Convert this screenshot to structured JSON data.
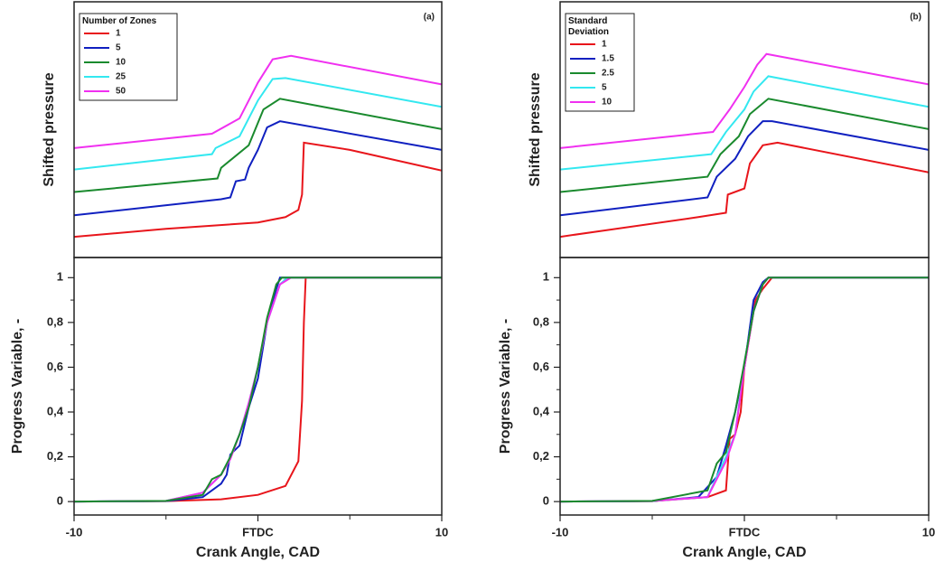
{
  "chart_data": [
    {
      "type": "line",
      "annotation": "(a)",
      "ylabel": "Shifted pressure",
      "xlim": [
        -10,
        10
      ],
      "ylim": [
        0,
        100
      ],
      "legend_title": "Number of Zones",
      "legend": "upper left",
      "series": [
        {
          "name": "1",
          "color": "#e8151b",
          "x": [
            -10,
            -5,
            0,
            1.5,
            2.2,
            2.4,
            2.5,
            5,
            10
          ],
          "values": [
            8.1,
            11.2,
            13.7,
            15.8,
            18.6,
            24.6,
            44.9,
            42.1,
            34.0
          ]
        },
        {
          "name": "5",
          "color": "#1020c0",
          "x": [
            -10,
            -2,
            -1.5,
            -1.2,
            -0.7,
            -0.5,
            0,
            0.5,
            1.2,
            10
          ],
          "values": [
            16.5,
            22.8,
            23.5,
            29.8,
            30.5,
            35.1,
            42.1,
            50.9,
            53.3,
            42.1
          ]
        },
        {
          "name": "10",
          "color": "#1a8a2e",
          "x": [
            -10,
            -2.2,
            -2,
            -0.5,
            0.3,
            1.2,
            10
          ],
          "values": [
            25.6,
            30.9,
            35.1,
            43.9,
            57.9,
            62.1,
            50.2
          ]
        },
        {
          "name": "25",
          "color": "#33e8f0",
          "x": [
            -10,
            -2.5,
            -2.3,
            -1,
            0,
            0.8,
            1.5,
            10
          ],
          "values": [
            34.4,
            40.4,
            42.8,
            47.4,
            61.4,
            69.8,
            70.2,
            58.9
          ]
        },
        {
          "name": "50",
          "color": "#f030f0",
          "x": [
            -10,
            -2.5,
            -1,
            0,
            0.8,
            1.8,
            10
          ],
          "values": [
            42.8,
            48.4,
            54.4,
            68.4,
            77.5,
            78.9,
            67.7
          ]
        }
      ]
    },
    {
      "type": "line",
      "xlabel": "Crank Angle, CAD",
      "ylabel": "Progress Variable, -",
      "xlim": [
        -10,
        10
      ],
      "ylim": [
        -0.06,
        1.09
      ],
      "xticks": [
        -10,
        {
          "value": 0,
          "label": "FTDC"
        },
        10
      ],
      "xminor": [
        -5,
        5
      ],
      "yticks": [
        0,
        {
          "value": 0.2,
          "label": "0,2"
        },
        {
          "value": 0.4,
          "label": "0,4"
        },
        {
          "value": 0.6,
          "label": "0,6"
        },
        {
          "value": 0.8,
          "label": "0,8"
        },
        1
      ],
      "yminor": [
        0.1,
        0.3,
        0.5,
        0.7,
        0.9
      ],
      "series": [
        {
          "color": "#e8151b",
          "x": [
            -10,
            -5,
            -2,
            0,
            1.5,
            2.2,
            2.4,
            2.5,
            2.6,
            10
          ],
          "values": [
            0,
            0.002,
            0.01,
            0.03,
            0.07,
            0.18,
            0.45,
            0.8,
            1,
            1
          ]
        },
        {
          "color": "#1020c0",
          "x": [
            -10,
            -5,
            -3,
            -2,
            -1.7,
            -1.5,
            -1,
            -0.5,
            0,
            0.5,
            1,
            1.2,
            10
          ],
          "values": [
            0,
            0.002,
            0.02,
            0.08,
            0.12,
            0.21,
            0.25,
            0.42,
            0.55,
            0.8,
            0.95,
            1,
            1
          ]
        },
        {
          "color": "#33e8f0",
          "x": [
            -10,
            -5,
            -3,
            -2,
            -1.5,
            -1,
            -0.5,
            0,
            0.5,
            1.2,
            1.6,
            10
          ],
          "values": [
            0,
            0.003,
            0.04,
            0.12,
            0.2,
            0.3,
            0.44,
            0.6,
            0.8,
            0.97,
            1,
            1
          ]
        },
        {
          "color": "#f030f0",
          "x": [
            -10,
            -5,
            -3,
            -2,
            -1.5,
            -1,
            -0.5,
            0,
            0.5,
            1.2,
            1.8,
            10
          ],
          "values": [
            0,
            0.003,
            0.04,
            0.12,
            0.19,
            0.3,
            0.44,
            0.6,
            0.8,
            0.97,
            1,
            1
          ]
        },
        {
          "color": "#1a8a2e",
          "x": [
            -10,
            -5,
            -3,
            -2.5,
            -2,
            -1.5,
            -1,
            -0.5,
            0,
            0.5,
            1,
            1.3,
            10
          ],
          "values": [
            0,
            0.003,
            0.03,
            0.1,
            0.12,
            0.2,
            0.3,
            0.42,
            0.6,
            0.82,
            0.97,
            1,
            1
          ]
        }
      ]
    },
    {
      "type": "line",
      "annotation": "(b)",
      "ylabel": "Shifted pressure",
      "xlim": [
        -10,
        10
      ],
      "ylim": [
        0,
        100
      ],
      "legend_title": "Standard Deviation",
      "legend": "upper left",
      "series": [
        {
          "name": "1",
          "color": "#e8151b",
          "x": [
            -10,
            -2.5,
            -1,
            -0.9,
            0,
            0.3,
            1,
            1.8,
            10
          ],
          "values": [
            8.1,
            15.8,
            17.5,
            24.6,
            27.0,
            36.8,
            43.9,
            44.9,
            33.3
          ]
        },
        {
          "name": "1.5",
          "color": "#1020c0",
          "x": [
            -10,
            -2,
            -1.5,
            -0.5,
            0.2,
            1,
            1.5,
            10
          ],
          "values": [
            16.5,
            23.5,
            31.6,
            38.6,
            47.4,
            53.3,
            53.3,
            42.1
          ]
        },
        {
          "name": "2.5",
          "color": "#1a8a2e",
          "x": [
            -10,
            -2,
            -1.3,
            -0.3,
            0.3,
            1.3,
            10
          ],
          "values": [
            25.6,
            31.6,
            40.4,
            47.4,
            56.1,
            62.1,
            50.2
          ]
        },
        {
          "name": "5",
          "color": "#33e8f0",
          "x": [
            -10,
            -1.8,
            -1,
            0,
            0.5,
            1.3,
            10
          ],
          "values": [
            34.4,
            40.4,
            49.1,
            57.9,
            64.9,
            70.9,
            58.9
          ]
        },
        {
          "name": "10",
          "color": "#f030f0",
          "x": [
            -10,
            -1.7,
            -0.8,
            0,
            0.7,
            1.2,
            10
          ],
          "values": [
            42.8,
            49.1,
            57.9,
            66.7,
            75.4,
            79.6,
            67.7
          ]
        }
      ]
    },
    {
      "type": "line",
      "xlabel": "Crank Angle, CAD",
      "ylabel": "Progress Variable, -",
      "xlim": [
        -10,
        10
      ],
      "ylim": [
        -0.06,
        1.09
      ],
      "xticks": [
        -10,
        {
          "value": 0,
          "label": "FTDC"
        },
        10
      ],
      "xminor": [
        -5,
        5
      ],
      "yticks": [
        0,
        {
          "value": 0.2,
          "label": "0,2"
        },
        {
          "value": 0.4,
          "label": "0,4"
        },
        {
          "value": 0.6,
          "label": "0,6"
        },
        {
          "value": 0.8,
          "label": "0,8"
        },
        1
      ],
      "yminor": [
        0.1,
        0.3,
        0.5,
        0.7,
        0.9
      ],
      "series": [
        {
          "color": "#e8151b",
          "x": [
            -10,
            -5,
            -2,
            -1,
            -0.8,
            -0.5,
            -0.2,
            0,
            0.3,
            0.6,
            1,
            1.5,
            10
          ],
          "values": [
            0,
            0.002,
            0.02,
            0.05,
            0.28,
            0.3,
            0.4,
            0.6,
            0.75,
            0.9,
            0.95,
            1,
            1
          ]
        },
        {
          "color": "#1020c0",
          "x": [
            -10,
            -5,
            -2.5,
            -1.5,
            -1,
            -0.5,
            0,
            0.5,
            1,
            1.3,
            10
          ],
          "values": [
            0,
            0.002,
            0.02,
            0.11,
            0.25,
            0.4,
            0.6,
            0.9,
            0.98,
            1,
            1
          ]
        },
        {
          "color": "#33e8f0",
          "x": [
            -10,
            -5,
            -2,
            -1,
            -0.5,
            0,
            0.5,
            1,
            1.3,
            10
          ],
          "values": [
            0,
            0.003,
            0.02,
            0.2,
            0.3,
            0.62,
            0.85,
            0.97,
            1,
            1
          ]
        },
        {
          "color": "#f030f0",
          "x": [
            -10,
            -5,
            -2,
            -1,
            -0.5,
            0,
            0.5,
            1,
            1.3,
            10
          ],
          "values": [
            0,
            0.003,
            0.02,
            0.18,
            0.3,
            0.6,
            0.85,
            0.97,
            1,
            1
          ]
        },
        {
          "color": "#1a8a2e",
          "x": [
            -10,
            -5,
            -2,
            -1.5,
            -1,
            -0.5,
            0,
            0.5,
            1,
            1.3,
            10
          ],
          "values": [
            0,
            0.003,
            0.05,
            0.17,
            0.22,
            0.4,
            0.62,
            0.85,
            0.97,
            1,
            1
          ]
        }
      ]
    }
  ]
}
